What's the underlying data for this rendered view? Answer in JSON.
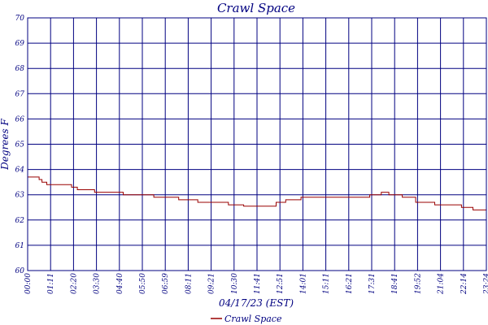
{
  "colors": {
    "frame": "#000080",
    "grid": "#000080",
    "series": "#990000",
    "text": "#000080",
    "background": "#ffffff"
  },
  "chart_data": {
    "type": "line",
    "title": "Crawl Space",
    "xlabel": "04/17/23 (EST)",
    "ylabel": "Degrees F",
    "ylim": [
      60,
      70
    ],
    "yticks": [
      60,
      61,
      62,
      63,
      64,
      65,
      66,
      67,
      68,
      69,
      70
    ],
    "xlim_hours": [
      0,
      24
    ],
    "xtick_labels": [
      "00:00",
      "01:11",
      "02:20",
      "03:30",
      "04:40",
      "05:50",
      "06:59",
      "08:11",
      "09:21",
      "10:30",
      "11:41",
      "12:51",
      "14:01",
      "15:11",
      "16:21",
      "17:31",
      "18:41",
      "19:52",
      "21:04",
      "22:14",
      "23:24"
    ],
    "grid": true,
    "legend": "bottom-center",
    "series": [
      {
        "name": "Crawl Space",
        "x_hours": [
          0,
          0.6,
          0.6,
          0.75,
          0.75,
          1.0,
          1.0,
          1.15,
          1.15,
          2.3,
          2.3,
          2.6,
          2.6,
          3.0,
          3.0,
          3.5,
          3.5,
          4.4,
          4.4,
          5.0,
          5.0,
          6.6,
          6.6,
          7.9,
          7.9,
          8.9,
          8.9,
          10.5,
          10.5,
          11.3,
          11.3,
          13.0,
          13.0,
          13.5,
          13.5,
          14.3,
          14.3,
          16.7,
          16.7,
          17.1,
          17.1,
          17.9,
          17.9,
          18.5,
          18.5,
          18.9,
          18.9,
          19.6,
          19.6,
          20.3,
          20.3,
          21.3,
          21.3,
          22.7,
          22.7,
          23.3,
          23.3,
          24.0
        ],
        "values": [
          63.7,
          63.7,
          63.6,
          63.6,
          63.5,
          63.5,
          63.4,
          63.4,
          63.4,
          63.4,
          63.3,
          63.3,
          63.2,
          63.2,
          63.2,
          63.2,
          63.1,
          63.1,
          63.1,
          63.1,
          63.0,
          63.0,
          62.9,
          62.9,
          62.8,
          62.8,
          62.7,
          62.7,
          62.6,
          62.6,
          62.55,
          62.55,
          62.7,
          62.7,
          62.8,
          62.8,
          62.9,
          62.9,
          62.9,
          62.9,
          62.9,
          62.9,
          63.0,
          63.0,
          63.1,
          63.1,
          63.0,
          63.0,
          62.9,
          62.9,
          62.7,
          62.7,
          62.6,
          62.6,
          62.5,
          62.5,
          62.4,
          62.4
        ]
      }
    ]
  }
}
